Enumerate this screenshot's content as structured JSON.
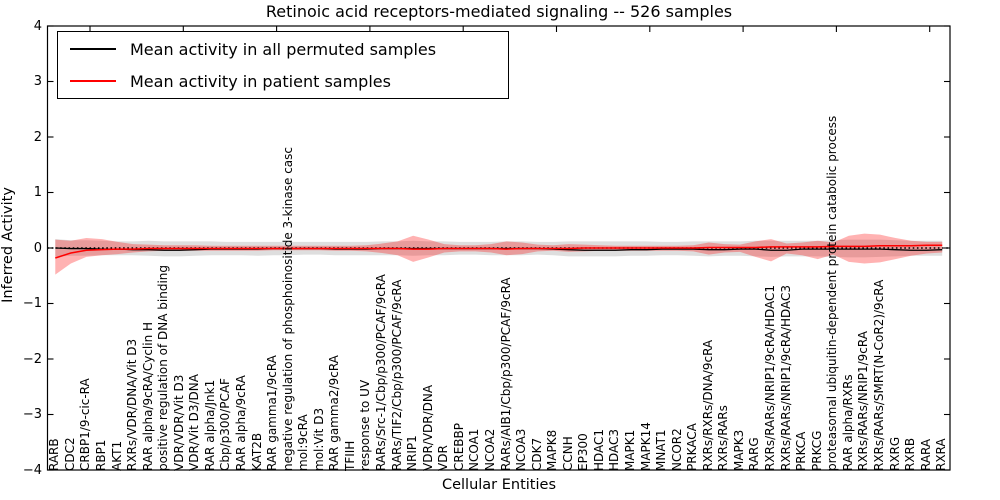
{
  "figure": {
    "title": "Retinoic acid receptors-mediated signaling -- 526 samples",
    "xlabel": "Cellular Entities",
    "ylabel": "Inferred Activity"
  },
  "legend": {
    "items": [
      {
        "label": "Mean activity in all permuted samples",
        "color": "#000000"
      },
      {
        "label": "Mean activity in patient samples",
        "color": "#ff0000"
      }
    ]
  },
  "chart_data": {
    "type": "line",
    "title": "Retinoic acid receptors-mediated signaling -- 526 samples",
    "xlabel": "Cellular Entities",
    "ylabel": "Inferred Activity",
    "ylim": [
      -4,
      4
    ],
    "grid": false,
    "legend_position": "upper left",
    "ytick_labels": [
      "4",
      "3",
      "2",
      "1",
      "0",
      "−1",
      "−2",
      "−3",
      "−4"
    ],
    "categories": [
      "RARB",
      "CDC2",
      "CRBP1/9-cic-RA",
      "RBP1",
      "AKT1",
      "RXRs/VDR/DNA/Vit D3",
      "RAR alpha/9cRA/Cyclin H",
      "positive regulation of DNA binding",
      "VDR/VDR/Vit D3",
      "VDR/Vit D3/DNA",
      "RAR alpha/Jnk1",
      "Cbp/p300/PCAF",
      "RAR alpha/9cRA",
      "KAT2B",
      "RAR gamma1/9cRA",
      "negative regulation of phosphoinositide 3-kinase casc",
      "mol:9cRA",
      "mol:Vit D3",
      "RAR gamma2/9cRA",
      "TFIIH",
      "response to UV",
      "RARs/Src-1/Cbp/p300/PCAF/9cRA",
      "RARs/TIF2/Cbp/p300/PCAF/9cRA",
      "NRIP1",
      "VDR/VDR/DNA",
      "VDR",
      "CREBBP",
      "NCOA1",
      "NCOA2",
      "RARs/AIB1/Cbp/p300/PCAF/9cRA",
      "NCOA3",
      "CDK7",
      "MAPK8",
      "CCNH",
      "EP300",
      "HDAC1",
      "HDAC3",
      "MAPK1",
      "MAPK14",
      "MNAT1",
      "NCOR2",
      "PRKACA",
      "RXRs/RXRs/DNA/9cRA",
      "RXRs/RARs",
      "MAPK3",
      "RARG",
      "RXRs/RARs/NRIP1/9cRA/HDAC1",
      "RXRs/RARs/NRIP1/9cRA/HDAC3",
      "PRKCA",
      "PRKCG",
      "proteasomal ubiquitin-dependent protein catabolic process",
      "RAR alpha/RXRs",
      "RXRs/RARs/NRIP1/9cRA",
      "RXRs/RARs/SMRT(N-CoR2)/9cRA",
      "RXRG",
      "RXRB",
      "RARA",
      "RXRA"
    ],
    "series": [
      {
        "name": "Mean activity in all permuted samples",
        "color": "#000000",
        "style": "solid",
        "values": [
          0.0,
          -0.01,
          -0.01,
          -0.02,
          -0.02,
          -0.03,
          -0.03,
          -0.04,
          -0.04,
          -0.03,
          -0.02,
          -0.02,
          -0.02,
          -0.02,
          -0.01,
          -0.01,
          -0.01,
          -0.01,
          -0.02,
          -0.02,
          -0.02,
          -0.01,
          -0.01,
          -0.01,
          -0.01,
          -0.01,
          -0.01,
          -0.01,
          -0.01,
          -0.01,
          -0.01,
          -0.01,
          -0.02,
          -0.03,
          -0.04,
          -0.04,
          -0.04,
          -0.03,
          -0.03,
          -0.02,
          -0.02,
          -0.02,
          -0.03,
          -0.03,
          -0.02,
          -0.02,
          -0.04,
          -0.04,
          -0.02,
          -0.02,
          -0.02,
          -0.02,
          -0.02,
          -0.02,
          -0.03,
          -0.04,
          -0.04,
          -0.03
        ]
      },
      {
        "name": "Mean activity in patient samples",
        "color": "#ff0000",
        "style": "solid",
        "values": [
          -0.18,
          -0.09,
          -0.04,
          -0.03,
          -0.02,
          -0.02,
          -0.01,
          -0.01,
          -0.01,
          -0.01,
          -0.01,
          -0.01,
          -0.01,
          -0.01,
          -0.01,
          -0.01,
          -0.01,
          -0.01,
          -0.01,
          -0.01,
          -0.01,
          -0.01,
          -0.01,
          -0.02,
          -0.02,
          -0.01,
          -0.01,
          -0.01,
          -0.01,
          -0.02,
          -0.01,
          -0.01,
          -0.01,
          -0.01,
          0.0,
          0.0,
          0.0,
          0.0,
          0.0,
          0.0,
          0.0,
          0.0,
          0.01,
          0.01,
          0.01,
          0.01,
          0.02,
          0.02,
          0.02,
          0.02,
          0.03,
          0.03,
          0.03,
          0.04,
          0.04,
          0.04,
          0.05,
          0.05
        ]
      }
    ],
    "zero_line": {
      "y": 0,
      "style": "dotted",
      "color": "#000000"
    },
    "bands": [
      {
        "name": "permuted-samples-band",
        "color": "rgba(0,0,0,0.13)",
        "upper": [
          0.16,
          0.14,
          0.14,
          0.13,
          0.12,
          0.12,
          0.13,
          0.12,
          0.12,
          0.12,
          0.12,
          0.11,
          0.11,
          0.11,
          0.11,
          0.11,
          0.11,
          0.11,
          0.11,
          0.11,
          0.11,
          0.12,
          0.12,
          0.13,
          0.12,
          0.12,
          0.11,
          0.11,
          0.11,
          0.12,
          0.12,
          0.11,
          0.11,
          0.12,
          0.12,
          0.12,
          0.12,
          0.12,
          0.12,
          0.11,
          0.11,
          0.12,
          0.12,
          0.12,
          0.12,
          0.13,
          0.13,
          0.13,
          0.13,
          0.13,
          0.14,
          0.15,
          0.15,
          0.15,
          0.14,
          0.13,
          0.13,
          0.13
        ],
        "lower": [
          -0.16,
          -0.14,
          -0.14,
          -0.13,
          -0.13,
          -0.13,
          -0.14,
          -0.15,
          -0.15,
          -0.14,
          -0.13,
          -0.13,
          -0.13,
          -0.14,
          -0.13,
          -0.13,
          -0.12,
          -0.12,
          -0.13,
          -0.13,
          -0.13,
          -0.13,
          -0.13,
          -0.14,
          -0.13,
          -0.13,
          -0.12,
          -0.12,
          -0.13,
          -0.13,
          -0.13,
          -0.12,
          -0.13,
          -0.15,
          -0.15,
          -0.15,
          -0.15,
          -0.14,
          -0.14,
          -0.13,
          -0.13,
          -0.14,
          -0.15,
          -0.14,
          -0.14,
          -0.15,
          -0.16,
          -0.15,
          -0.15,
          -0.15,
          -0.16,
          -0.17,
          -0.17,
          -0.16,
          -0.15,
          -0.14,
          -0.14,
          -0.14
        ]
      },
      {
        "name": "patient-samples-band",
        "color": "rgba(255,0,0,0.30)",
        "upper": [
          0.15,
          0.13,
          0.18,
          0.16,
          0.11,
          0.07,
          0.06,
          0.05,
          0.05,
          0.05,
          0.04,
          0.04,
          0.04,
          0.04,
          0.04,
          0.04,
          0.04,
          0.04,
          0.04,
          0.04,
          0.05,
          0.08,
          0.12,
          0.22,
          0.15,
          0.07,
          0.05,
          0.05,
          0.07,
          0.12,
          0.1,
          0.06,
          0.05,
          0.07,
          0.06,
          0.05,
          0.04,
          0.04,
          0.04,
          0.04,
          0.04,
          0.05,
          0.1,
          0.07,
          0.06,
          0.12,
          0.16,
          0.08,
          0.1,
          0.13,
          0.1,
          0.22,
          0.26,
          0.24,
          0.18,
          0.13,
          0.11,
          0.11
        ],
        "lower": [
          -0.48,
          -0.28,
          -0.16,
          -0.13,
          -0.11,
          -0.08,
          -0.06,
          -0.05,
          -0.05,
          -0.05,
          -0.05,
          -0.05,
          -0.05,
          -0.05,
          -0.04,
          -0.04,
          -0.04,
          -0.04,
          -0.05,
          -0.05,
          -0.06,
          -0.09,
          -0.13,
          -0.25,
          -0.17,
          -0.08,
          -0.06,
          -0.06,
          -0.08,
          -0.13,
          -0.11,
          -0.06,
          -0.05,
          -0.07,
          -0.06,
          -0.05,
          -0.05,
          -0.05,
          -0.05,
          -0.05,
          -0.05,
          -0.06,
          -0.12,
          -0.08,
          -0.07,
          -0.16,
          -0.24,
          -0.1,
          -0.13,
          -0.2,
          -0.12,
          -0.25,
          -0.28,
          -0.26,
          -0.2,
          -0.14,
          -0.1,
          -0.08
        ]
      }
    ]
  }
}
